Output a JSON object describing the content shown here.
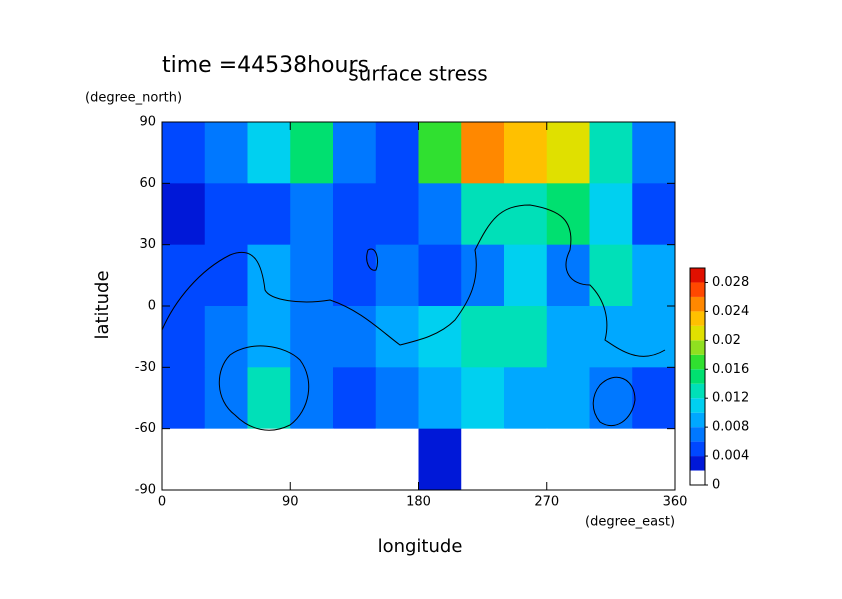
{
  "chart_data": {
    "type": "contour",
    "title": "surface stress",
    "annotation": "time =44538hours",
    "x_label": "longitude",
    "x_unit": "(degree_east)",
    "y_label": "latitude",
    "y_unit": "(degree_north)",
    "xlim": [
      0,
      360
    ],
    "ylim": [
      -90,
      90
    ],
    "xticks": [
      0,
      90,
      180,
      270,
      360
    ],
    "yticks": [
      -90,
      -60,
      -30,
      0,
      30,
      60,
      90
    ],
    "x": [
      15,
      45,
      75,
      105,
      135,
      165,
      195,
      225,
      255,
      285,
      315,
      345
    ],
    "y": [
      75,
      45,
      15,
      -15,
      -45,
      -75
    ],
    "z": [
      [
        0.004,
        0.006,
        0.01,
        0.014,
        0.006,
        0.004,
        0.016,
        0.024,
        0.022,
        0.02,
        0.012,
        0.006
      ],
      [
        0.002,
        0.004,
        0.004,
        0.006,
        0.004,
        0.004,
        0.006,
        0.012,
        0.012,
        0.014,
        0.01,
        0.004
      ],
      [
        0.004,
        0.004,
        0.008,
        0.006,
        0.004,
        0.006,
        0.004,
        0.006,
        0.01,
        0.006,
        0.012,
        0.008
      ],
      [
        0.004,
        0.006,
        0.008,
        0.006,
        0.006,
        0.008,
        0.01,
        0.012,
        0.012,
        0.008,
        0.008,
        0.008
      ],
      [
        0.004,
        0.006,
        0.012,
        0.006,
        0.004,
        0.006,
        0.008,
        0.01,
        0.008,
        0.008,
        0.006,
        0.004
      ],
      [
        0,
        0,
        0,
        0,
        0,
        0,
        0.002,
        0,
        0,
        0,
        0,
        0
      ]
    ],
    "levels": [
      0,
      0.002,
      0.004,
      0.006,
      0.008,
      0.01,
      0.012,
      0.014,
      0.016,
      0.018,
      0.02,
      0.022,
      0.024,
      0.026,
      0.028
    ],
    "colors": [
      "#ffffff",
      "#0018d8",
      "#0048ff",
      "#0078ff",
      "#00a8ff",
      "#00d0f0",
      "#00e0b8",
      "#00e070",
      "#30e030",
      "#90e020",
      "#e0e000",
      "#ffc000",
      "#ff8800",
      "#ff4800",
      "#e01000"
    ],
    "colorbar_ticks": [
      0,
      0.004,
      0.008,
      0.012,
      0.016,
      0.02,
      0.024,
      0.028
    ]
  }
}
